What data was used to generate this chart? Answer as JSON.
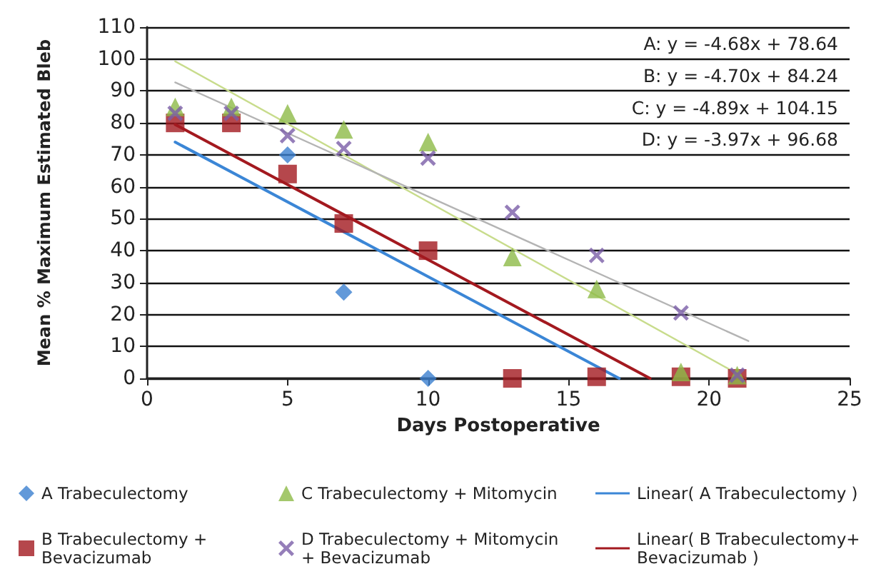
{
  "chart_data": {
    "type": "scatter",
    "xlabel": "Days Postoperative",
    "ylabel": "Mean % Maximum Estimated Bleb",
    "x": [
      1,
      3,
      5,
      7,
      10,
      13,
      16,
      19,
      21
    ],
    "series": [
      {
        "name": "A Trabeculectomy",
        "color": "#3b7fd0",
        "marker": "diamond",
        "values": [
          null,
          null,
          70,
          27,
          0,
          null,
          null,
          null,
          null
        ]
      },
      {
        "name": "B Trabeculectomy + Bevacizumab",
        "color": "#a3191f",
        "marker": "square",
        "values": [
          80,
          80,
          64,
          48.5,
          40,
          0,
          0.5,
          0.5,
          0
        ]
      },
      {
        "name": "C Trabeculectomy + Mitomycin",
        "color": "#8dba47",
        "marker": "triangle",
        "values": [
          85,
          85,
          83,
          78,
          74,
          38,
          28,
          2,
          1
        ]
      },
      {
        "name": "D Trabeculectomy + Mitomycin + Bevacizumab",
        "color": "#7b5ea7",
        "marker": "cross",
        "values": [
          83,
          83,
          76,
          72,
          69,
          52,
          38.5,
          20.5,
          1
        ]
      },
      {
        "name": "Linear( A Trabeculectomy )",
        "type": "line",
        "color": "#3b86d6",
        "marker": "none",
        "line_style": "solid",
        "x": [
          1,
          16.8
        ],
        "values": [
          74,
          0
        ]
      },
      {
        "name": "Linear( B Trabeculectomy+ Bevacizumab )",
        "type": "line",
        "color": "#a3191f",
        "marker": "none",
        "line_style": "solid",
        "x": [
          1,
          17.9
        ],
        "values": [
          79.5,
          0
        ]
      },
      {
        "type": "line",
        "color": "#c8dc8c",
        "marker": "none",
        "line_style": "solid",
        "x": [
          1,
          21.3
        ],
        "values": [
          99.3,
          0
        ]
      },
      {
        "type": "line",
        "color": "#b4b4b4",
        "marker": "none",
        "line_style": "solid",
        "x": [
          1,
          21.4
        ],
        "values": [
          92.7,
          11.7
        ]
      }
    ],
    "xlim": [
      0,
      25
    ],
    "xticks": [
      0,
      5,
      10,
      15,
      20,
      25
    ],
    "ylim": [
      0,
      110
    ],
    "yticks": [
      0,
      10,
      20,
      30,
      40,
      50,
      60,
      70,
      80,
      90,
      100,
      110
    ],
    "grid": "y",
    "legend": "bottom",
    "annotations": [
      "A: y = -4.68x + 78.64",
      "B: y = -4.70x + 84.24",
      "C: y = -4.89x + 104.15",
      "D: y = -3.97x + 96.68"
    ]
  }
}
